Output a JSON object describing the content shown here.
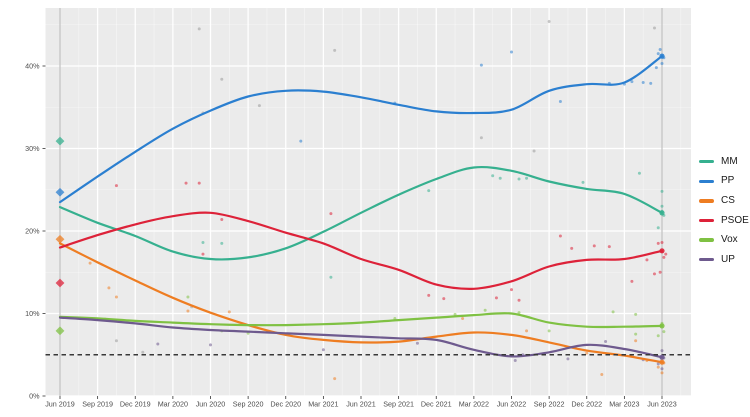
{
  "figure": {
    "title": "",
    "background": "#ffffff",
    "panel_background": "#ebebeb",
    "grid_color": "#ffffff",
    "axis_text_color": "#4d4d4d",
    "tick_mark_color": "#333333"
  },
  "legend": {
    "items": [
      {
        "label": "MM",
        "color": "#36b08f"
      },
      {
        "label": "PP",
        "color": "#2b7fd0"
      },
      {
        "label": "CS",
        "color": "#ee7d22"
      },
      {
        "label": "PSOE",
        "color": "#dd2239"
      },
      {
        "label": "Vox",
        "color": "#7fc143"
      },
      {
        "label": "UP",
        "color": "#6e5a8e"
      }
    ]
  },
  "chart_data": {
    "type": "line",
    "subtype": "scatter-points-with-smoothed-trend-lines",
    "title": "",
    "xlabel": "",
    "ylabel": "",
    "grid": true,
    "legend_position": "right",
    "x_tick_labels": [
      "Jun 2019",
      "Sep 2019",
      "Dec 2019",
      "Mar 2020",
      "Jun 2020",
      "Sep 2020",
      "Dec 2020",
      "Mar 2021",
      "Jun 2021",
      "Sep 2021",
      "Dec 2021",
      "Mar 2022",
      "Jun 2022",
      "Sep 2022",
      "Dec 2022",
      "Mar 2023",
      "Jun 2023"
    ],
    "y_tick_labels": [
      "0%",
      "10%",
      "20%",
      "30%",
      "40%"
    ],
    "y_tick_values": [
      0,
      10,
      20,
      30,
      40
    ],
    "y_minor_values": [
      5,
      15,
      25,
      35,
      45
    ],
    "ylim": [
      0,
      47
    ],
    "threshold_line": {
      "value": 5,
      "style": "dashed",
      "color": "#383838"
    },
    "election_date_lines": [
      {
        "label": "Jun 2019",
        "t": 0
      },
      {
        "label": "Jun 2023",
        "t": 16
      }
    ],
    "parties": {
      "MM": "#36b08f",
      "PP": "#2b7fd0",
      "CS": "#ee7d22",
      "PSOE": "#dd2239",
      "Vox": "#7fc143",
      "UP": "#6e5a8e",
      "NA": "#9a9a9a"
    },
    "series": [
      {
        "name": "MM",
        "values": [
          22.9,
          21.0,
          19.4,
          17.5,
          16.6,
          16.8,
          17.9,
          19.9,
          22.2,
          24.4,
          26.3,
          27.7,
          27.3,
          26.0,
          25.1,
          24.5,
          22.2
        ]
      },
      {
        "name": "PP",
        "values": [
          23.5,
          26.6,
          29.6,
          32.4,
          34.6,
          36.3,
          37.0,
          36.9,
          36.2,
          35.3,
          34.5,
          34.3,
          34.7,
          37.0,
          37.8,
          38.0,
          41.2
        ]
      },
      {
        "name": "CS",
        "values": [
          18.5,
          16.2,
          14.0,
          11.9,
          10.1,
          8.6,
          7.4,
          6.8,
          6.5,
          6.6,
          7.2,
          7.7,
          7.4,
          6.5,
          5.5,
          4.9,
          4.1
        ]
      },
      {
        "name": "PSOE",
        "values": [
          18.0,
          19.5,
          20.8,
          21.8,
          22.2,
          21.2,
          19.8,
          18.5,
          16.6,
          15.3,
          13.5,
          13.0,
          13.9,
          15.7,
          16.5,
          16.6,
          17.6
        ]
      },
      {
        "name": "Vox",
        "values": [
          9.6,
          9.4,
          9.1,
          8.9,
          8.7,
          8.6,
          8.6,
          8.7,
          8.9,
          9.2,
          9.5,
          9.8,
          10.0,
          8.9,
          8.4,
          8.4,
          8.5
        ]
      },
      {
        "name": "UP",
        "values": [
          9.5,
          9.2,
          8.8,
          8.3,
          8.0,
          7.8,
          7.6,
          7.4,
          7.2,
          7.0,
          6.8,
          5.6,
          4.8,
          5.3,
          6.2,
          5.7,
          4.7
        ]
      }
    ],
    "election_results_jun2019": [
      {
        "party": "MM",
        "value": 30.9
      },
      {
        "party": "PP",
        "value": 24.7
      },
      {
        "party": "CS",
        "value": 19.0
      },
      {
        "party": "PSOE",
        "value": 13.7
      },
      {
        "party": "Vox",
        "value": 7.9
      }
    ],
    "line_end_values_jun2023": {
      "PP": 41.2,
      "MM": 22.2,
      "PSOE": 17.6,
      "Vox": 8.5,
      "UP": 4.7,
      "CS": 4.1
    },
    "scatter_format": [
      "party",
      "quarters_after_jun2019",
      "percent"
    ],
    "scatter": [
      [
        "NA",
        3.7,
        44.5
      ],
      [
        "NA",
        13.0,
        45.4
      ],
      [
        "NA",
        15.8,
        44.6
      ],
      [
        "NA",
        7.3,
        41.9
      ],
      [
        "NA",
        4.3,
        38.4
      ],
      [
        "NA",
        5.3,
        35.2
      ],
      [
        "NA",
        3.8,
        34.3
      ],
      [
        "NA",
        11.2,
        31.3
      ],
      [
        "NA",
        12.6,
        29.7
      ],
      [
        "NA",
        1.5,
        6.7
      ],
      [
        "NA",
        2.2,
        5.3
      ],
      [
        "NA",
        3.5,
        10.8
      ],
      [
        "PP",
        12.0,
        41.7
      ],
      [
        "PP",
        11.2,
        40.1
      ],
      [
        "PP",
        8.9,
        35.5
      ],
      [
        "PP",
        13.3,
        35.7
      ],
      [
        "PP",
        14.6,
        37.9
      ],
      [
        "PP",
        15.0,
        37.8
      ],
      [
        "PP",
        15.2,
        38.1
      ],
      [
        "PP",
        15.5,
        38.0
      ],
      [
        "PP",
        15.7,
        37.9
      ],
      [
        "PP",
        15.85,
        39.8
      ],
      [
        "PP",
        15.9,
        41.5
      ],
      [
        "PP",
        15.95,
        42.0
      ],
      [
        "PP",
        16.05,
        41.0
      ],
      [
        "PP",
        16.0,
        40.3
      ],
      [
        "PP",
        6.4,
        30.9
      ],
      [
        "MM",
        3.8,
        18.6
      ],
      [
        "MM",
        4.3,
        18.5
      ],
      [
        "MM",
        7.2,
        14.4
      ],
      [
        "MM",
        9.8,
        24.9
      ],
      [
        "MM",
        11.5,
        26.7
      ],
      [
        "MM",
        11.7,
        26.4
      ],
      [
        "MM",
        12.2,
        26.3
      ],
      [
        "MM",
        12.4,
        26.4
      ],
      [
        "MM",
        13.9,
        25.9
      ],
      [
        "MM",
        15.4,
        27.0
      ],
      [
        "MM",
        15.9,
        20.4
      ],
      [
        "MM",
        16.0,
        23.0
      ],
      [
        "MM",
        16.0,
        22.4
      ],
      [
        "MM",
        16.05,
        21.9
      ],
      [
        "MM",
        16.0,
        24.8
      ],
      [
        "PSOE",
        1.5,
        25.5
      ],
      [
        "PSOE",
        3.35,
        25.8
      ],
      [
        "PSOE",
        3.7,
        25.8
      ],
      [
        "PSOE",
        4.3,
        21.4
      ],
      [
        "PSOE",
        3.8,
        17.2
      ],
      [
        "PSOE",
        7.2,
        22.1
      ],
      [
        "PSOE",
        9.8,
        12.2
      ],
      [
        "PSOE",
        10.2,
        11.8
      ],
      [
        "PSOE",
        11.6,
        11.9
      ],
      [
        "PSOE",
        12.0,
        12.9
      ],
      [
        "PSOE",
        12.2,
        11.6
      ],
      [
        "PSOE",
        13.3,
        19.4
      ],
      [
        "PSOE",
        13.6,
        17.9
      ],
      [
        "PSOE",
        14.2,
        18.2
      ],
      [
        "PSOE",
        14.6,
        18.1
      ],
      [
        "PSOE",
        15.2,
        13.9
      ],
      [
        "PSOE",
        15.6,
        16.5
      ],
      [
        "PSOE",
        15.8,
        14.8
      ],
      [
        "PSOE",
        15.9,
        18.5
      ],
      [
        "PSOE",
        16.0,
        17.5
      ],
      [
        "PSOE",
        16.05,
        16.8
      ],
      [
        "PSOE",
        16.0,
        18.6
      ],
      [
        "PSOE",
        15.95,
        15.0
      ],
      [
        "PSOE",
        16.1,
        17.2
      ],
      [
        "CS",
        0.8,
        16.1
      ],
      [
        "CS",
        1.3,
        13.1
      ],
      [
        "CS",
        1.5,
        12.0
      ],
      [
        "CS",
        3.4,
        10.3
      ],
      [
        "CS",
        4.5,
        10.2
      ],
      [
        "CS",
        7.3,
        2.1
      ],
      [
        "CS",
        10.7,
        9.4
      ],
      [
        "CS",
        12.4,
        7.9
      ],
      [
        "CS",
        14.0,
        5.2
      ],
      [
        "CS",
        15.3,
        6.7
      ],
      [
        "CS",
        15.6,
        4.3
      ],
      [
        "CS",
        15.9,
        3.5
      ],
      [
        "CS",
        16.0,
        2.8
      ],
      [
        "CS",
        16.05,
        4.0
      ],
      [
        "CS",
        14.4,
        2.6
      ],
      [
        "Vox",
        1.2,
        9.3
      ],
      [
        "Vox",
        3.4,
        12.0
      ],
      [
        "Vox",
        4.3,
        7.9
      ],
      [
        "Vox",
        5.0,
        7.6
      ],
      [
        "Vox",
        8.9,
        9.4
      ],
      [
        "Vox",
        10.5,
        9.9
      ],
      [
        "Vox",
        11.3,
        10.4
      ],
      [
        "Vox",
        12.2,
        10.1
      ],
      [
        "Vox",
        13.0,
        7.9
      ],
      [
        "Vox",
        14.7,
        10.2
      ],
      [
        "Vox",
        15.3,
        9.9
      ],
      [
        "Vox",
        15.3,
        7.5
      ],
      [
        "Vox",
        15.9,
        7.3
      ],
      [
        "Vox",
        16.0,
        8.8
      ],
      [
        "Vox",
        16.05,
        7.8
      ],
      [
        "UP",
        2.6,
        6.3
      ],
      [
        "UP",
        4.0,
        6.2
      ],
      [
        "UP",
        7.0,
        5.6
      ],
      [
        "UP",
        9.5,
        6.4
      ],
      [
        "UP",
        12.1,
        4.3
      ],
      [
        "UP",
        12.3,
        5.0
      ],
      [
        "UP",
        13.5,
        4.5
      ],
      [
        "UP",
        14.5,
        6.6
      ],
      [
        "UP",
        15.5,
        4.4
      ],
      [
        "UP",
        15.9,
        3.9
      ],
      [
        "UP",
        16.0,
        5.5
      ],
      [
        "UP",
        16.05,
        4.6
      ],
      [
        "UP",
        16.0,
        3.3
      ]
    ]
  }
}
